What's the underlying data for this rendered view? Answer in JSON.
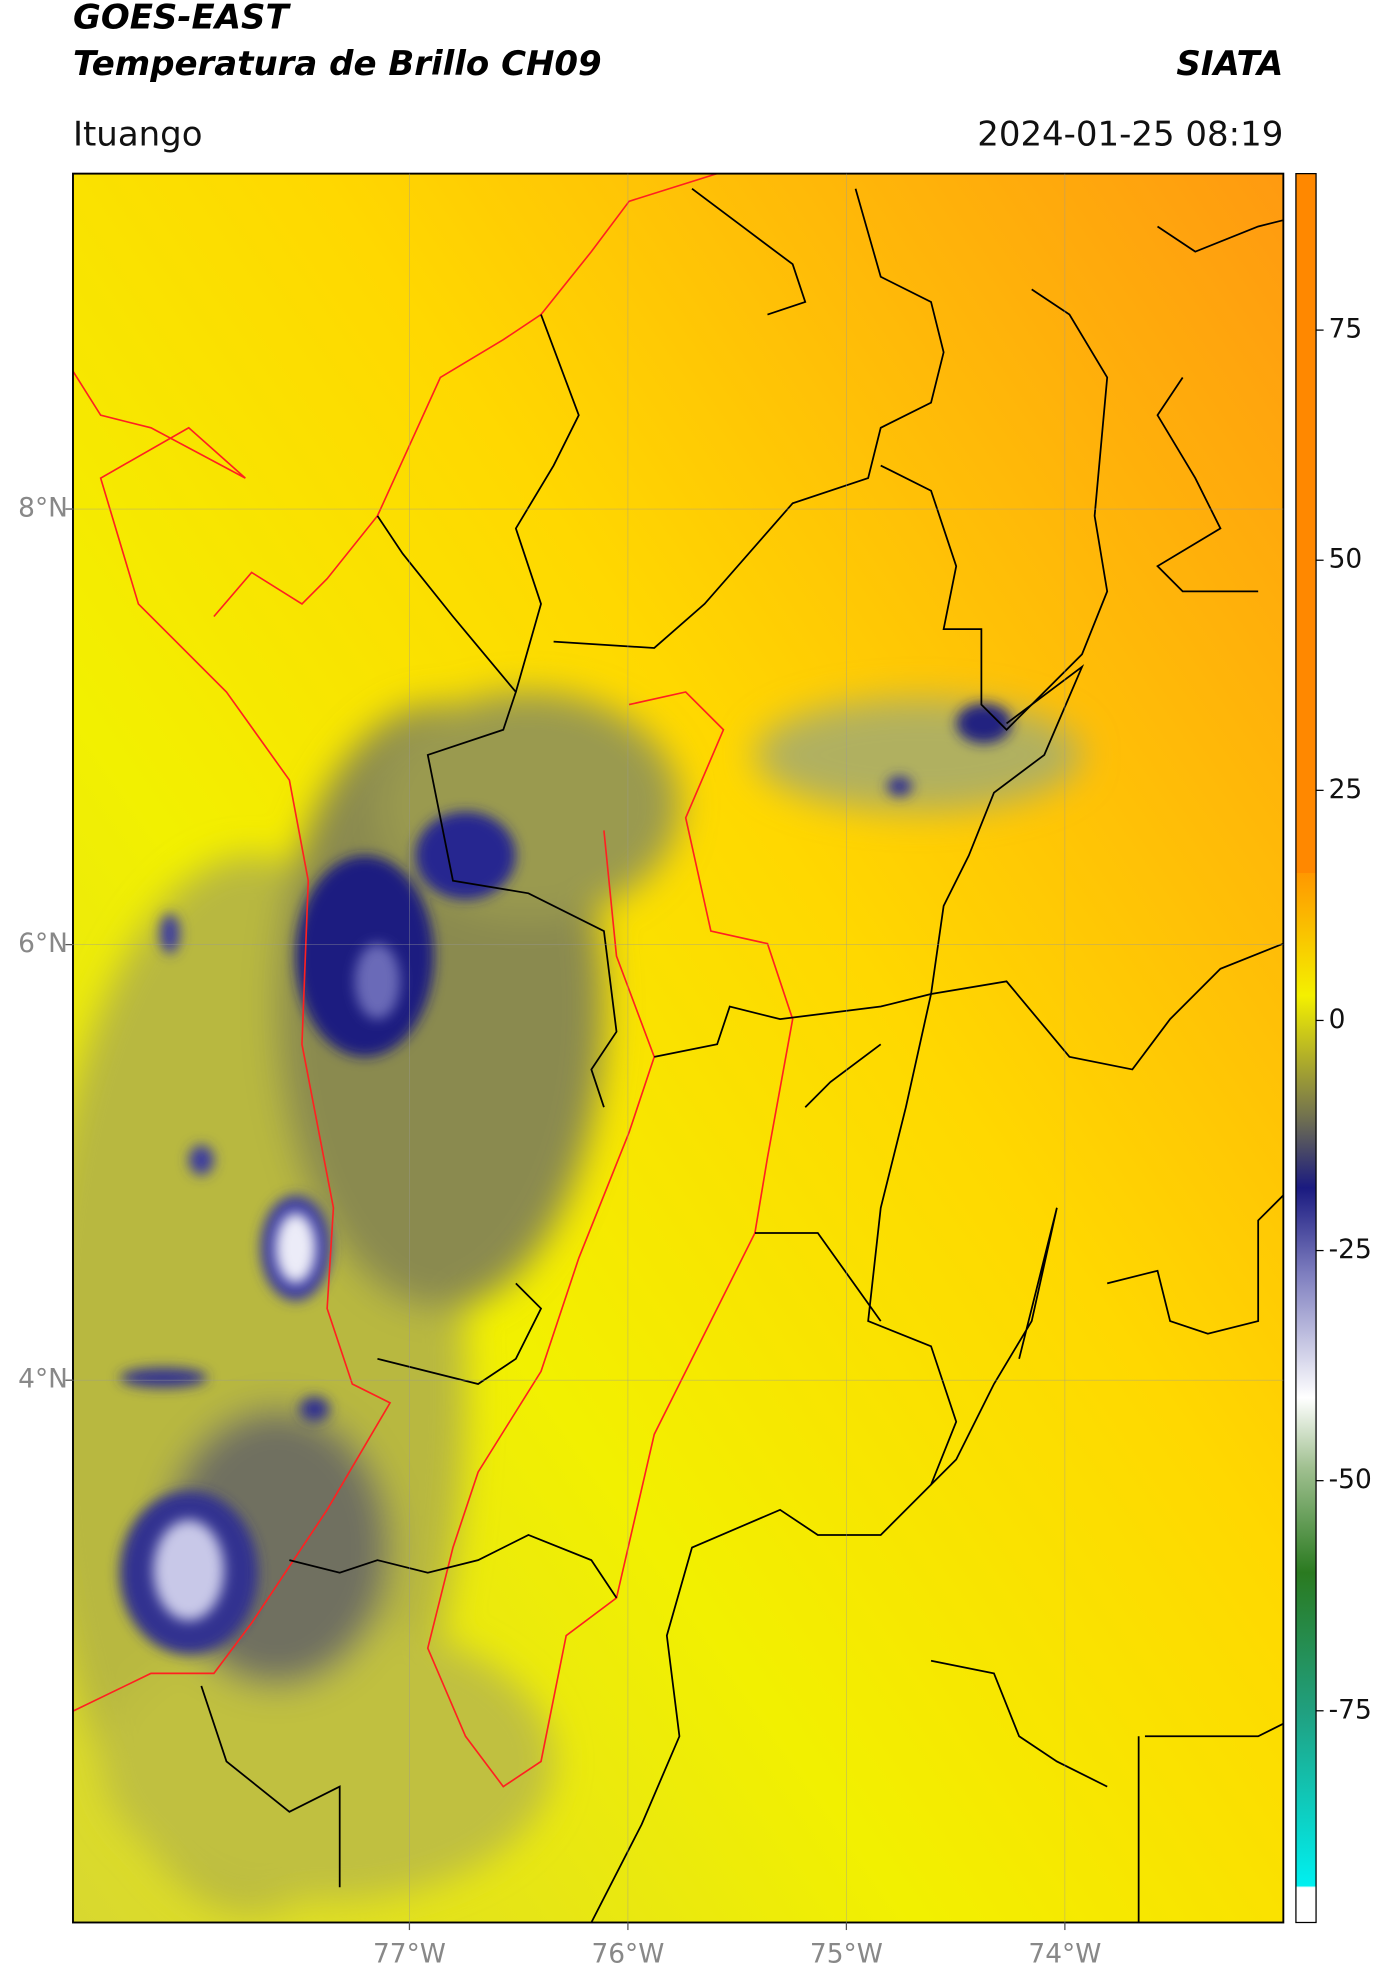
{
  "header": {
    "title": "GOES-EAST",
    "subtitle": "Temperatura de Brillo CH09",
    "source": "SIATA",
    "location": "Ituango",
    "timestamp": "2024-01-25 08:19"
  },
  "map": {
    "xlim": [
      -78.54,
      -73.0
    ],
    "ylim": [
      1.51,
      9.54
    ],
    "xticks": [
      {
        "value": -77,
        "label": "77°W"
      },
      {
        "value": -76,
        "label": "76°W"
      },
      {
        "value": -75,
        "label": "75°W"
      },
      {
        "value": -74,
        "label": "74°W"
      }
    ],
    "yticks": [
      {
        "value": 8,
        "label": "8°N"
      },
      {
        "value": 6,
        "label": "6°N"
      },
      {
        "value": 4,
        "label": "4°N"
      }
    ],
    "grid": true
  },
  "colorbar": {
    "lim": [
      -98,
      92
    ],
    "ticks": [
      -75,
      -50,
      -25,
      0,
      25,
      50,
      75
    ]
  }
}
